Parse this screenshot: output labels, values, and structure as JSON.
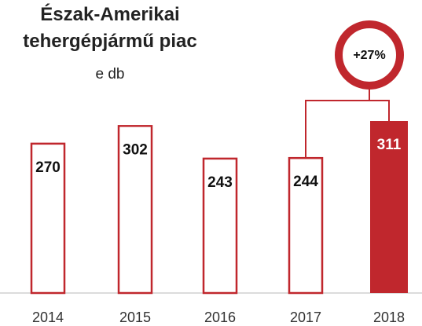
{
  "chart_data": {
    "type": "bar",
    "title": "Észak-Amerikai tehergépjármű piac",
    "subtitle": "e db",
    "categories": [
      "2014",
      "2015",
      "2016",
      "2017",
      "2018"
    ],
    "values": [
      270,
      302,
      243,
      244,
      311
    ],
    "colors": [
      "#ffffff",
      "#ffffff",
      "#ffffff",
      "#ffffff",
      "#c0272d"
    ],
    "edge_color": "#c0272d",
    "annotation": "+27%"
  }
}
